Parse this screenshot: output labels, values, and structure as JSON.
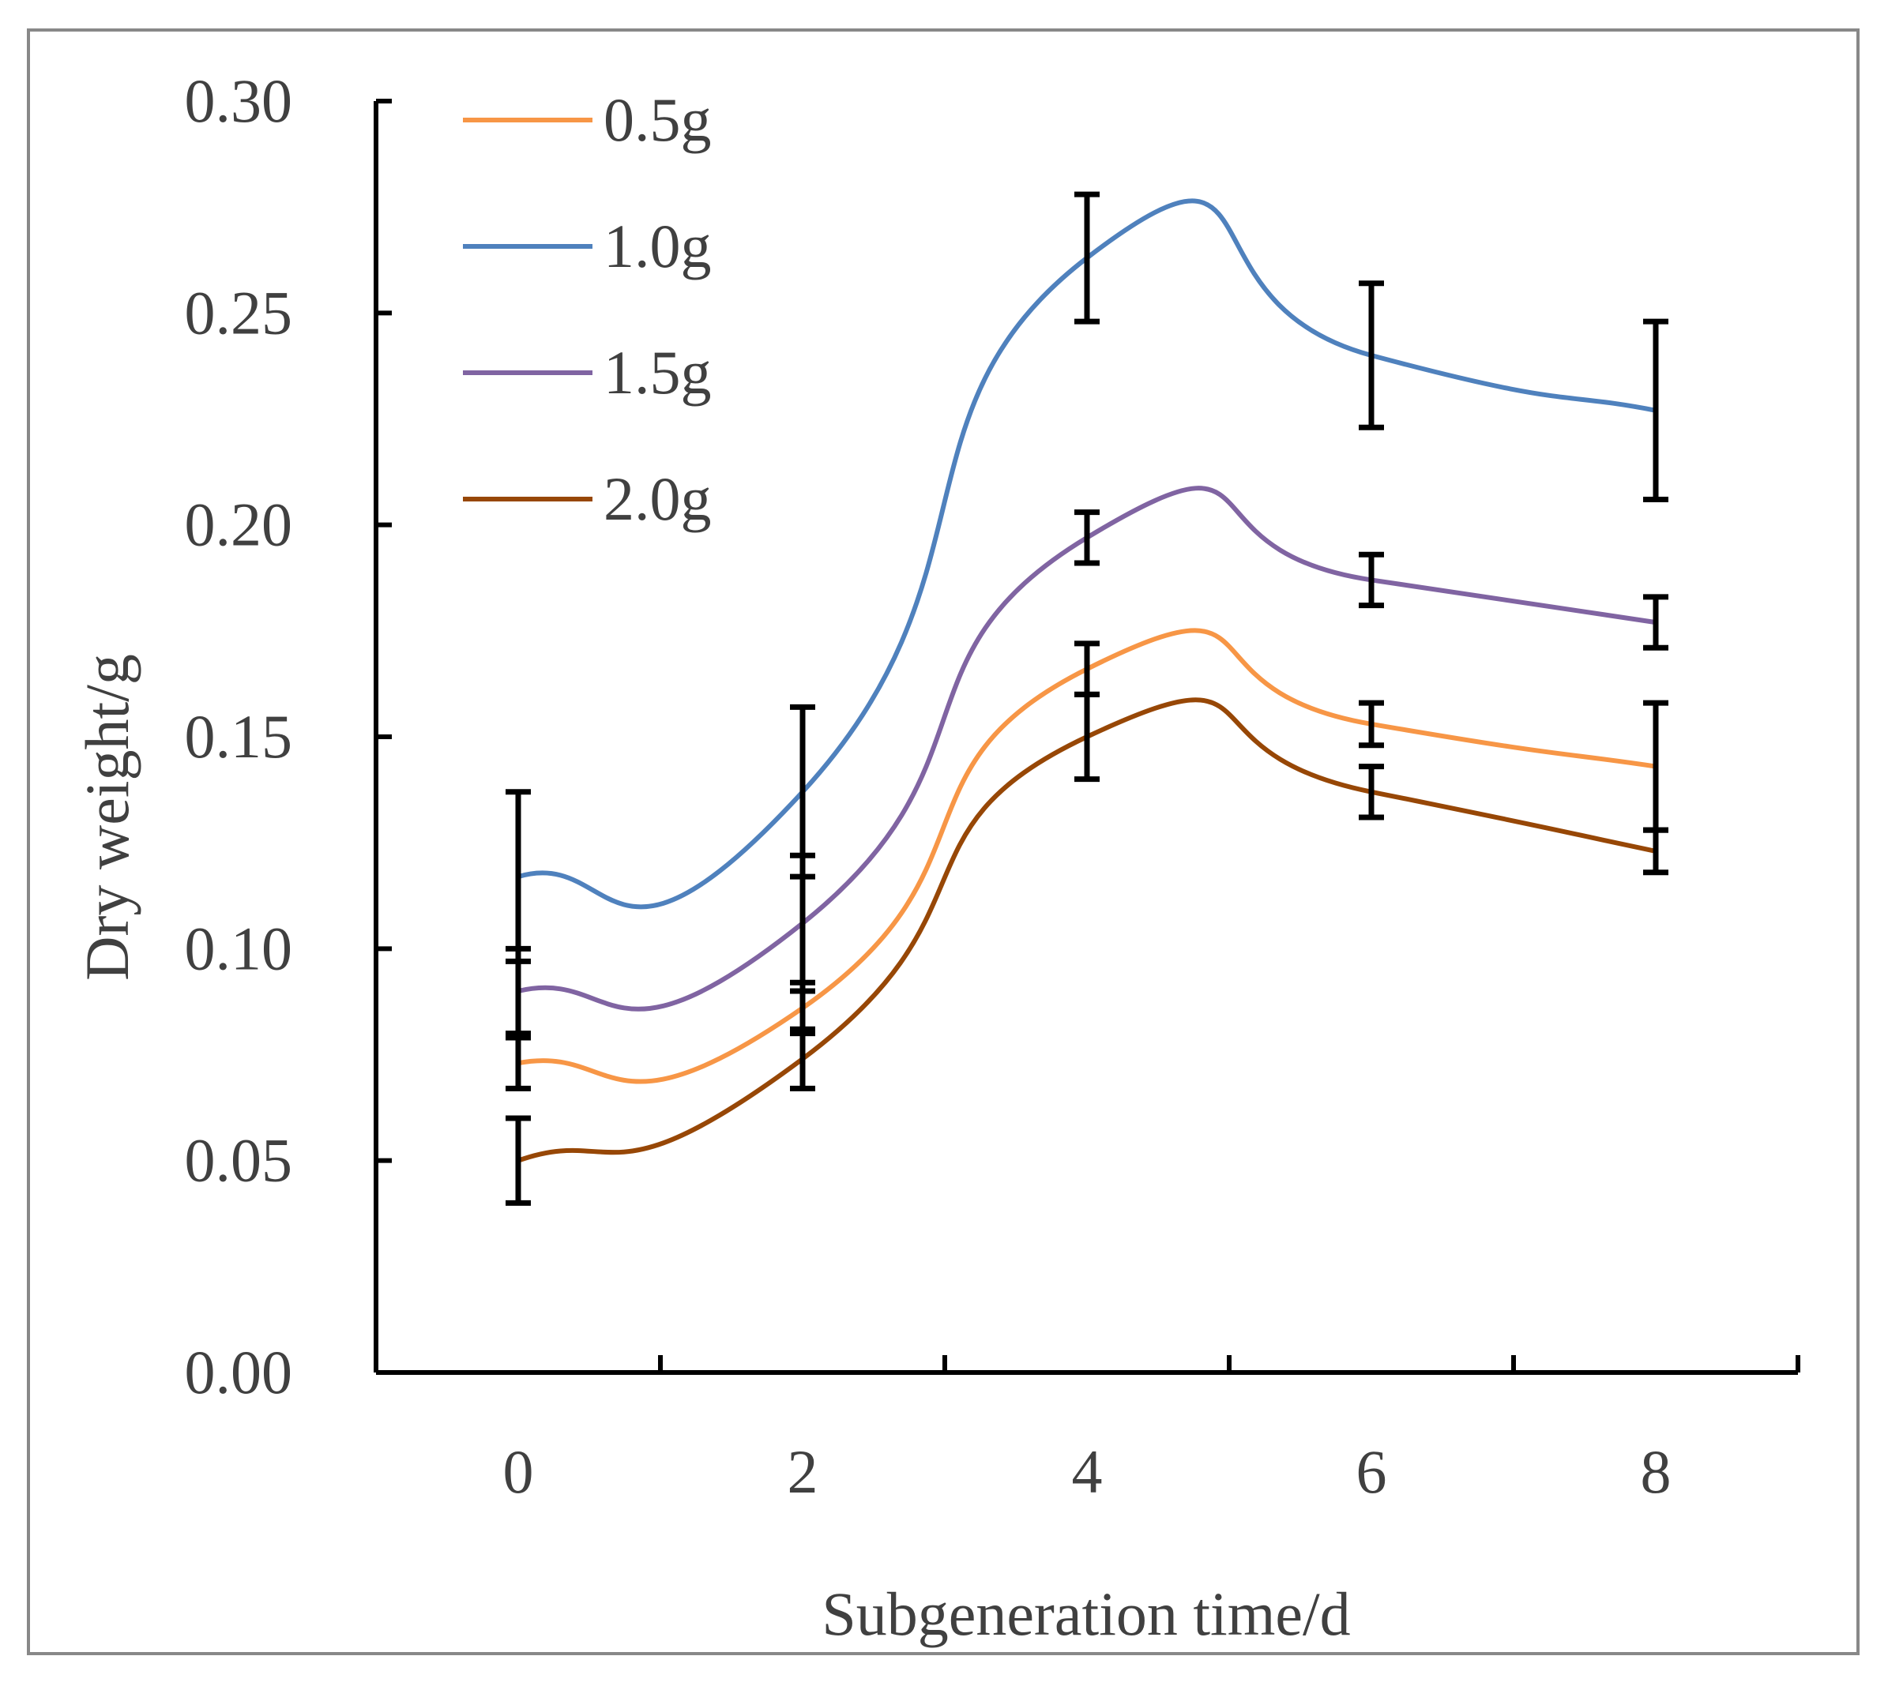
{
  "chart_data": {
    "type": "line",
    "smoothed": true,
    "title": "",
    "xlabel": "Subgeneration time/d",
    "ylabel": "Dry weight/g",
    "xlim": [
      -1,
      9
    ],
    "ylim": [
      0,
      0.3
    ],
    "x_ticks": [
      {
        "value": 0,
        "label": "0"
      },
      {
        "value": 2,
        "label": "2"
      },
      {
        "value": 4,
        "label": "4"
      },
      {
        "value": 6,
        "label": "6"
      },
      {
        "value": 8,
        "label": "8"
      }
    ],
    "x_minor_ticks": [
      1,
      3,
      5,
      7,
      9
    ],
    "y_ticks": [
      {
        "value": 0.0,
        "label": "0.00"
      },
      {
        "value": 0.05,
        "label": "0.05"
      },
      {
        "value": 0.1,
        "label": "0.10"
      },
      {
        "value": 0.15,
        "label": "0.15"
      },
      {
        "value": 0.2,
        "label": "0.20"
      },
      {
        "value": 0.25,
        "label": "0.25"
      },
      {
        "value": 0.3,
        "label": "0.30"
      }
    ],
    "legend_position": "top-left",
    "x": [
      0,
      2,
      4,
      6,
      8
    ],
    "series": [
      {
        "name": "0.5g",
        "color": "#F79646",
        "values": [
          0.073,
          0.086,
          0.166,
          0.153,
          0.143
        ],
        "errors": [
          0.006,
          0.006,
          0.006,
          0.005,
          0.015
        ]
      },
      {
        "name": "1.0g",
        "color": "#4F81BD",
        "values": [
          0.117,
          0.137,
          0.263,
          0.24,
          0.227
        ],
        "errors": [
          0.02,
          0.02,
          0.015,
          0.017,
          0.021
        ]
      },
      {
        "name": "1.5g",
        "color": "#8064A2",
        "values": [
          0.09,
          0.106,
          0.197,
          0.187,
          0.177
        ],
        "errors": [
          0.01,
          0.016,
          0.006,
          0.006,
          0.006
        ]
      },
      {
        "name": "2.0g",
        "color": "#974706",
        "values": [
          0.05,
          0.074,
          0.15,
          0.137,
          0.123
        ],
        "errors": [
          0.01,
          0.007,
          0.01,
          0.006,
          0.005
        ]
      }
    ]
  }
}
